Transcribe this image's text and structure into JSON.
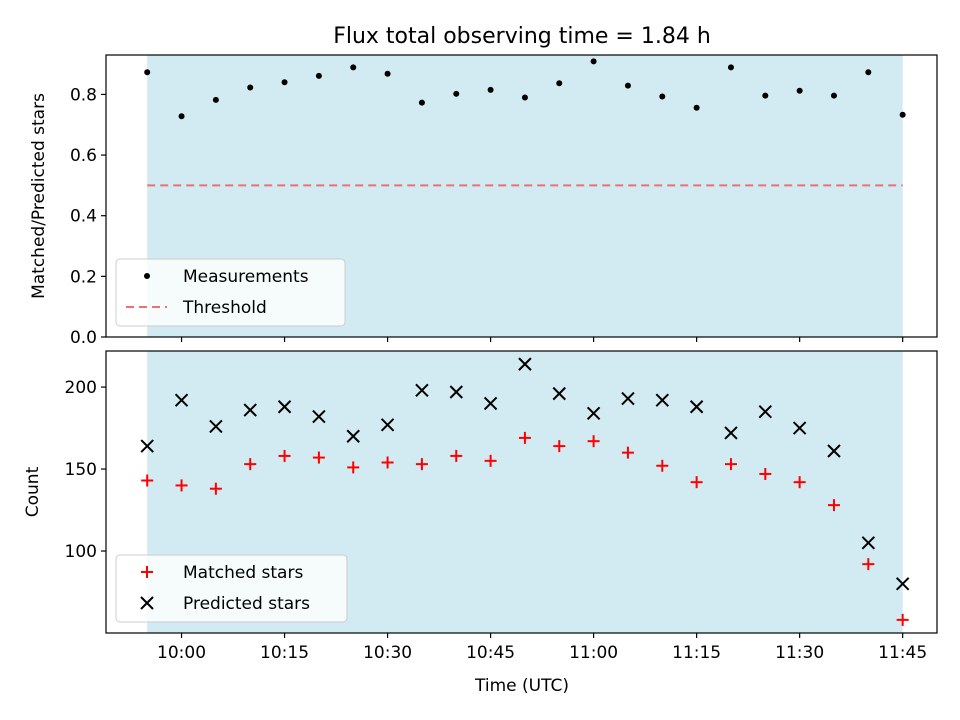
{
  "chart_data": [
    {
      "type": "scatter",
      "title": "Flux total observing time = 1.84 h",
      "xlabel": "",
      "ylabel": "Matched/Predicted stars",
      "ylim": [
        0,
        0.93
      ],
      "yticks": [
        "0.0",
        "0.2",
        "0.4",
        "0.6",
        "0.8"
      ],
      "yticks_values": [
        0,
        0.2,
        0.4,
        0.6,
        0.8
      ],
      "shaded_region": {
        "x_start": "09:55",
        "x_end": "11:45",
        "color": "#add8e6"
      },
      "series": [
        {
          "name": "Measurements",
          "marker": "dot",
          "color": "#000000",
          "x": [
            "09:55",
            "10:00",
            "10:05",
            "10:10",
            "10:15",
            "10:20",
            "10:25",
            "10:30",
            "10:35",
            "10:40",
            "10:45",
            "10:50",
            "10:55",
            "11:00",
            "11:05",
            "11:10",
            "11:15",
            "11:20",
            "11:25",
            "11:30",
            "11:35",
            "11:40",
            "11:45"
          ],
          "y": [
            0.873,
            0.728,
            0.782,
            0.823,
            0.84,
            0.861,
            0.889,
            0.868,
            0.773,
            0.802,
            0.815,
            0.79,
            0.837,
            0.909,
            0.829,
            0.793,
            0.756,
            0.889,
            0.796,
            0.812,
            0.796,
            0.873,
            0.733
          ]
        },
        {
          "name": "Threshold",
          "marker": "dashed-line",
          "color": "#f07070",
          "y": 0.5
        }
      ],
      "legend": {
        "placement": "lower-left"
      }
    },
    {
      "type": "scatter",
      "title": "",
      "xlabel": "Time (UTC)",
      "ylabel": "Count",
      "ylim": [
        50,
        222
      ],
      "yticks": [
        "100",
        "150",
        "200"
      ],
      "yticks_values": [
        100,
        150,
        200
      ],
      "xlim": [
        "09:49",
        "11:50"
      ],
      "xticks": [
        "10:00",
        "10:15",
        "10:30",
        "10:45",
        "11:00",
        "11:15",
        "11:30",
        "11:45"
      ],
      "shaded_region": {
        "x_start": "09:55",
        "x_end": "11:45",
        "color": "#add8e6"
      },
      "series": [
        {
          "name": "Matched stars",
          "marker": "plus",
          "color": "#ff0000",
          "x": [
            "09:55",
            "10:00",
            "10:05",
            "10:10",
            "10:15",
            "10:20",
            "10:25",
            "10:30",
            "10:35",
            "10:40",
            "10:45",
            "10:50",
            "10:55",
            "11:00",
            "11:05",
            "11:10",
            "11:15",
            "11:20",
            "11:25",
            "11:30",
            "11:35",
            "11:40",
            "11:45"
          ],
          "y": [
            143,
            140,
            138,
            153,
            158,
            157,
            151,
            154,
            153,
            158,
            155,
            169,
            164,
            167,
            160,
            152,
            142,
            153,
            147,
            142,
            128,
            92,
            58
          ]
        },
        {
          "name": "Predicted stars",
          "marker": "x",
          "color": "#000000",
          "x": [
            "09:55",
            "10:00",
            "10:05",
            "10:10",
            "10:15",
            "10:20",
            "10:25",
            "10:30",
            "10:35",
            "10:40",
            "10:45",
            "10:50",
            "10:55",
            "11:00",
            "11:05",
            "11:10",
            "11:15",
            "11:20",
            "11:25",
            "11:30",
            "11:35",
            "11:40",
            "11:45"
          ],
          "y": [
            164,
            192,
            176,
            186,
            188,
            182,
            170,
            177,
            198,
            197,
            190,
            214,
            196,
            184,
            193,
            192,
            188,
            172,
            185,
            175,
            161,
            105,
            80
          ]
        }
      ],
      "legend": {
        "placement": "lower-left"
      }
    }
  ]
}
